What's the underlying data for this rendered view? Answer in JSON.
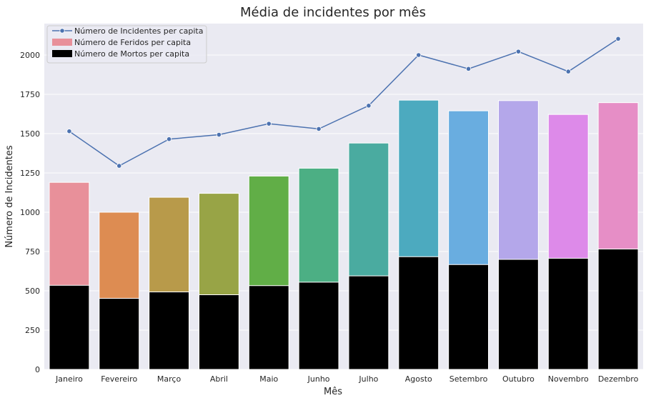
{
  "chart_data": {
    "type": "bar",
    "title": "Média de incidentes por mês",
    "xlabel": "Mês",
    "ylabel": "Número de Incidentes",
    "ylim": [
      0,
      2200
    ],
    "yticks": [
      0,
      250,
      500,
      750,
      1000,
      1250,
      1500,
      1750,
      2000
    ],
    "categories": [
      "Janeiro",
      "Fevereiro",
      "Março",
      "Abril",
      "Maio",
      "Junho",
      "Julho",
      "Agosto",
      "Setembro",
      "Outubro",
      "Novembro",
      "Dezembro"
    ],
    "series": [
      {
        "name": "Número de Incidentes per capita",
        "type": "line",
        "color": "#4c72b0",
        "values": [
          1515,
          1295,
          1465,
          1493,
          1563,
          1530,
          1678,
          2000,
          1912,
          2022,
          1895,
          2103
        ]
      },
      {
        "name": "Número de Feridos per capita",
        "type": "bar",
        "color": "#e8909a",
        "bar_colors": [
          "#e8909a",
          "#dd8c52",
          "#b89a4a",
          "#98a446",
          "#61ae47",
          "#4caf84",
          "#4aaba0",
          "#4caabf",
          "#69ade0",
          "#b4a7ea",
          "#dd8ae9",
          "#e68ec6"
        ],
        "values": [
          1190,
          1000,
          1095,
          1120,
          1230,
          1280,
          1440,
          1713,
          1645,
          1710,
          1622,
          1697
        ]
      },
      {
        "name": "Número de Mortos per capita",
        "type": "bar",
        "color": "#000000",
        "values": [
          535,
          452,
          493,
          475,
          533,
          555,
          595,
          717,
          667,
          700,
          707,
          766
        ]
      }
    ],
    "legend_position": "top-left",
    "grid": true,
    "background": "#eaeaf2"
  }
}
